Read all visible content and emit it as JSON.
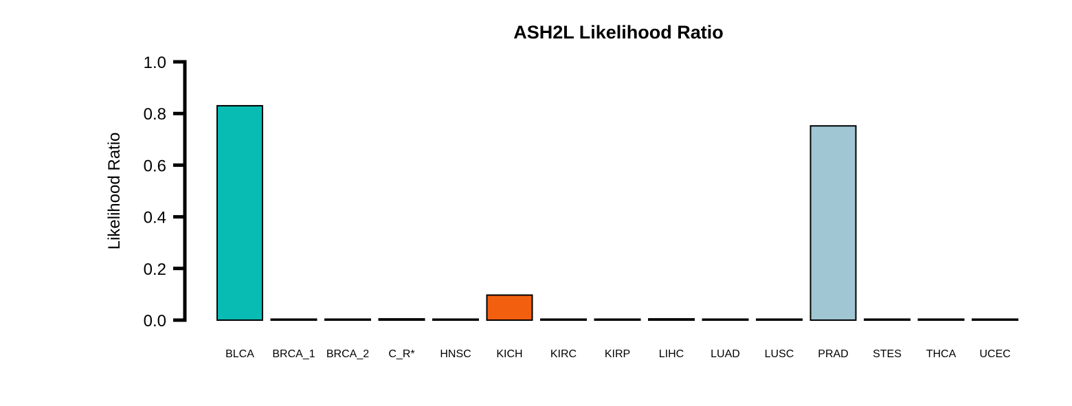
{
  "chart_data": {
    "type": "bar",
    "title": "ASH2L Likelihood Ratio",
    "xlabel": "",
    "ylabel": "Likelihood Ratio",
    "ylim": [
      0,
      1.0
    ],
    "yticks": [
      "0.0",
      "0.2",
      "0.4",
      "0.6",
      "0.8",
      "1.0"
    ],
    "grid": false,
    "legend": "none",
    "categories": [
      "BLCA",
      "BRCA_1",
      "BRCA_2",
      "C_R*",
      "HNSC",
      "KICH",
      "KIRC",
      "KIRP",
      "LIHC",
      "LUAD",
      "LUSC",
      "PRAD",
      "STES",
      "THCA",
      "UCEC"
    ],
    "values": [
      0.83,
      0.0,
      0.0,
      0.005,
      0.0,
      0.097,
      0.0,
      0.0,
      0.005,
      0.0,
      0.0,
      0.752,
      0.0,
      0.0,
      0.0
    ],
    "colors": [
      "#08bcb4",
      "#000000",
      "#000000",
      "#000000",
      "#000000",
      "#f2600f",
      "#000000",
      "#000000",
      "#000000",
      "#000000",
      "#000000",
      "#a0c6d4",
      "#000000",
      "#000000",
      "#000000"
    ],
    "bar_outline_color": "#000000",
    "axis_color": "#000000"
  }
}
